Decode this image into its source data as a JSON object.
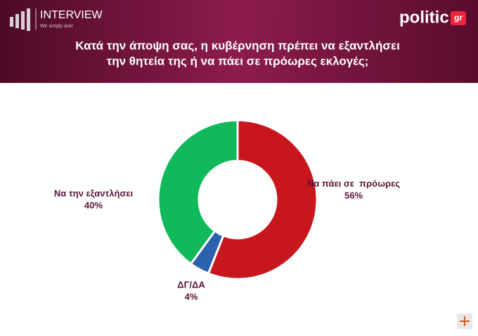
{
  "header": {
    "brand": "INTERVIEW",
    "tagline": "We simply ask!",
    "logo": "politic",
    "logo_suffix": "gr"
  },
  "chart_data": {
    "type": "donut",
    "title": [
      "Κατά την άποψη σας, η κυβέρνηση πρέπει να εξαντλήσει",
      "την θητεία της ή να πάει σε πρόωρες εκλογές;"
    ],
    "categories": [
      "Να πάει σε  πρόωρες",
      "ΔΓ/ΔΑ",
      "Να την εξαντλήσει"
    ],
    "values": [
      56,
      4,
      40
    ],
    "value_labels": [
      "56%",
      "4%",
      "40%"
    ],
    "colors": [
      "#c8161d",
      "#2c62ad",
      "#10b95a"
    ]
  }
}
